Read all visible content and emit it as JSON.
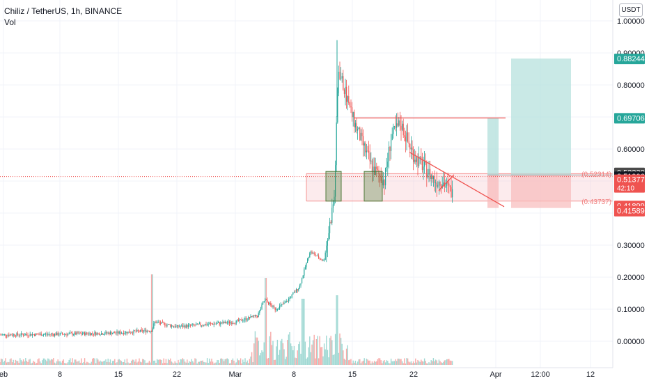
{
  "header": {
    "title": "Chiliz / TetherUS, 1h, BINANCE",
    "volume_label": "Vol",
    "currency_button": "USDT"
  },
  "colors": {
    "up": "#26a69a",
    "down": "#ef5350",
    "zone": "#f5c6cb",
    "target": "#b2dfdb",
    "stop": "#f8bbbb",
    "box": "#4f7a3a"
  },
  "chart_data": {
    "type": "candlestick",
    "symbol": "Chiliz / TetherUS",
    "timeframe": "1h",
    "exchange": "BINANCE",
    "yscale": "linear",
    "ylim": [
      -0.08,
      1.0
    ],
    "y_ticks": [
      "1.00000",
      "0.90000",
      "0.80000",
      "0.70000",
      "0.60000",
      "0.50000",
      "0.40000",
      "0.30000",
      "0.20000",
      "0.10000",
      "0.00000"
    ],
    "x_ticks": [
      "eb",
      "8",
      "15",
      "22",
      "Mar",
      "8",
      "15",
      "22",
      "Apr",
      "12:00",
      "12"
    ],
    "price_path": [
      [
        "Feb",
        0.02
      ],
      [
        "8",
        0.022
      ],
      [
        "15",
        0.026
      ],
      [
        "Feb 19",
        0.034
      ],
      [
        "Feb 20",
        0.06
      ],
      [
        "22",
        0.045
      ],
      [
        "Mar",
        0.06
      ],
      [
        "Mar 4",
        0.08
      ],
      [
        "Mar 5",
        0.13
      ],
      [
        "Mar 6",
        0.1
      ],
      [
        "Mar 7",
        0.12
      ],
      [
        "Mar 8",
        0.17
      ],
      [
        "Mar 9",
        0.28
      ],
      [
        "Mar 10",
        0.25
      ],
      [
        "Mar 11",
        0.45
      ],
      [
        "Mar 12",
        0.85
      ],
      [
        "Mar 13",
        0.7
      ],
      [
        "15",
        0.62
      ],
      [
        "Mar 16",
        0.54
      ],
      [
        "Mar 17",
        0.5
      ],
      [
        "Mar 18",
        0.64
      ],
      [
        "Mar 19",
        0.68
      ],
      [
        "Mar 20",
        0.58
      ],
      [
        "22",
        0.54
      ],
      [
        "Mar 23",
        0.5
      ],
      [
        "Mar 24",
        0.5
      ],
      [
        "Mar 25",
        0.46
      ],
      [
        "Mar 26",
        0.5
      ],
      [
        "Mar 27",
        0.51
      ]
    ],
    "annotations": {
      "resistance_line": 0.69706,
      "demand_zone": [
        0.43737,
        0.52314
      ],
      "take_profit": 0.88244,
      "target_2": 0.69706,
      "stop_loss": 0.41589,
      "entry": 0.51906
    },
    "zone_labels": [
      "(0.52314)",
      "(0.43737)"
    ],
    "price_labels": [
      {
        "text": "0.88244",
        "y": 0.88244,
        "bg": "#26a69a",
        "color": "#ffffff"
      },
      {
        "text": "0.69706",
        "y": 0.69706,
        "bg": "#26a69a",
        "color": "#ffffff"
      },
      {
        "text": "0.52230",
        "y": 0.5223,
        "bg": "#4a4a4a",
        "color": "#ffffff"
      },
      {
        "text": "0.51906",
        "y": 0.51906,
        "bg": "#131722",
        "color": "#ffffff"
      },
      {
        "text": "0.51377",
        "sub": "42:10",
        "y": 0.51377,
        "bg": "#ef5350",
        "color": "#ffffff"
      },
      {
        "text": "0.41899",
        "y": 0.41899,
        "bg": "#ef5350",
        "color": "#ffffff"
      },
      {
        "text": "0.41589",
        "y": 0.41589,
        "bg": "#ef5350",
        "color": "#ffffff"
      }
    ]
  }
}
